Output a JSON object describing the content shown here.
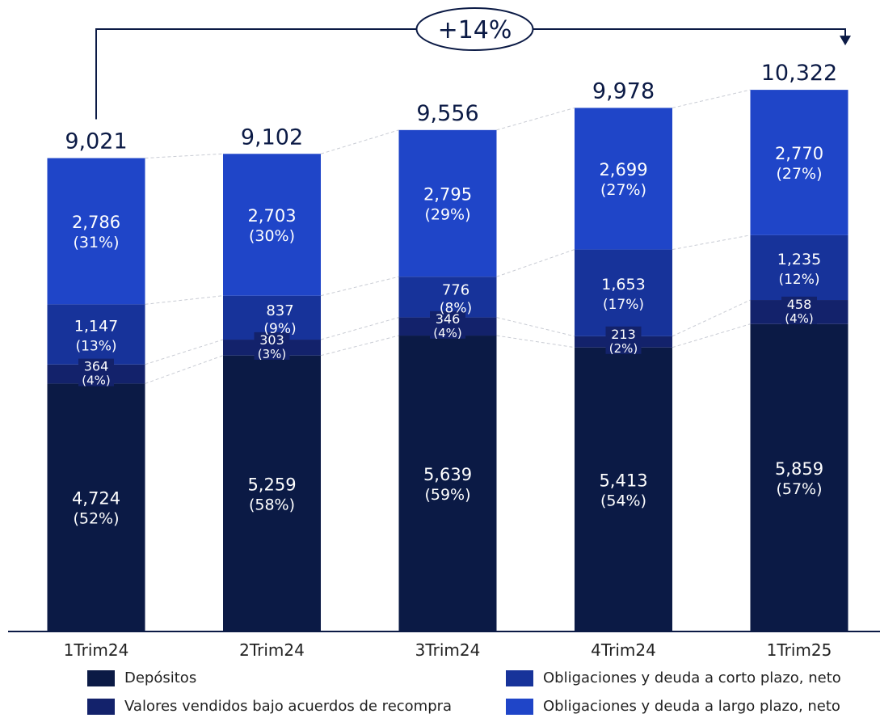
{
  "chart_data": {
    "type": "bar",
    "stacked": true,
    "categories": [
      "1Trim24",
      "2Trim24",
      "3Trim24",
      "4Trim24",
      "1Trim25"
    ],
    "totals": [
      "9,021",
      "9,102",
      "9,556",
      "9,978",
      "10,322"
    ],
    "series": [
      {
        "name": "Depósitos",
        "color": "#0b1a45",
        "values": [
          4724,
          5259,
          5639,
          5413,
          5859
        ],
        "labels": [
          "4,724",
          "5,259",
          "5,639",
          "5,413",
          "5,859"
        ],
        "pcts": [
          "(52%)",
          "(58%)",
          "(59%)",
          "(54%)",
          "(57%)"
        ]
      },
      {
        "name": "Valores vendidos bajo acuerdos de recompra",
        "color": "#13226b",
        "values": [
          364,
          303,
          346,
          213,
          458
        ],
        "labels": [
          "364",
          "303",
          "346",
          "213",
          "458"
        ],
        "pcts": [
          "(4%)",
          "(3%)",
          "(4%)",
          "(2%)",
          "(4%)"
        ]
      },
      {
        "name": "Obligaciones y deuda a corto plazo, neto",
        "color": "#17339a",
        "values": [
          1147,
          837,
          776,
          1653,
          1235
        ],
        "labels": [
          "1,147",
          "837",
          "776",
          "1,653",
          "1,235"
        ],
        "pcts": [
          "(13%)",
          "(9%)",
          "(8%)",
          "(17%)",
          "(12%)"
        ]
      },
      {
        "name": "Obligaciones y deuda a largo plazo, neto",
        "color": "#1f45c8",
        "values": [
          2786,
          2703,
          2795,
          2699,
          2770
        ],
        "labels": [
          "2,786",
          "2,703",
          "2,795",
          "2,699",
          "2,770"
        ],
        "pcts": [
          "(31%)",
          "(30%)",
          "(29%)",
          "(27%)",
          "(27%)"
        ]
      }
    ],
    "growth_annotation": "+14%",
    "ylim": [
      0,
      10322
    ],
    "legend_position": "bottom",
    "grid": false
  }
}
